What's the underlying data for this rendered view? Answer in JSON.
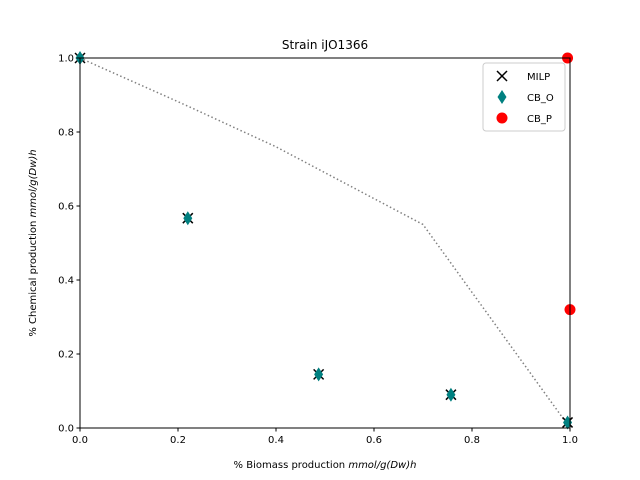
{
  "chart_data": {
    "type": "scatter",
    "title": "Strain iJO1366",
    "xlabel_prefix": "% Biomass production ",
    "xlabel_unit": "mmol/g(Dw)h",
    "ylabel_prefix": "% Chemical production ",
    "ylabel_unit": "mmol/g(Dw)h",
    "xlim": [
      0,
      1
    ],
    "ylim": [
      0,
      1
    ],
    "x_ticks": [
      "0.0",
      "0.2",
      "0.4",
      "0.6",
      "0.8",
      "1.0"
    ],
    "y_ticks": [
      "0.0",
      "0.2",
      "0.4",
      "0.6",
      "0.8",
      "1.0"
    ],
    "grid": false,
    "legend_position": "top-right",
    "frontier": {
      "style": "dotted",
      "color": "#808080",
      "x": [
        0.0,
        0.22,
        0.4,
        0.7,
        1.0
      ],
      "y": [
        1.0,
        0.87,
        0.76,
        0.55,
        0.0
      ]
    },
    "series": [
      {
        "name": "MILP",
        "marker": "x",
        "color": "#000000",
        "x": [
          0.0,
          0.22,
          0.487,
          0.757,
          0.995
        ],
        "y": [
          1.0,
          0.567,
          0.145,
          0.09,
          0.015
        ]
      },
      {
        "name": "CB_O",
        "marker": "diamond",
        "color": "#008080",
        "x": [
          0.0,
          0.22,
          0.487,
          0.757,
          0.995
        ],
        "y": [
          1.0,
          0.567,
          0.145,
          0.09,
          0.015
        ]
      },
      {
        "name": "CB_P",
        "marker": "circle",
        "color": "#ff0000",
        "x": [
          0.995,
          1.0
        ],
        "y": [
          1.0,
          0.32
        ]
      }
    ]
  }
}
